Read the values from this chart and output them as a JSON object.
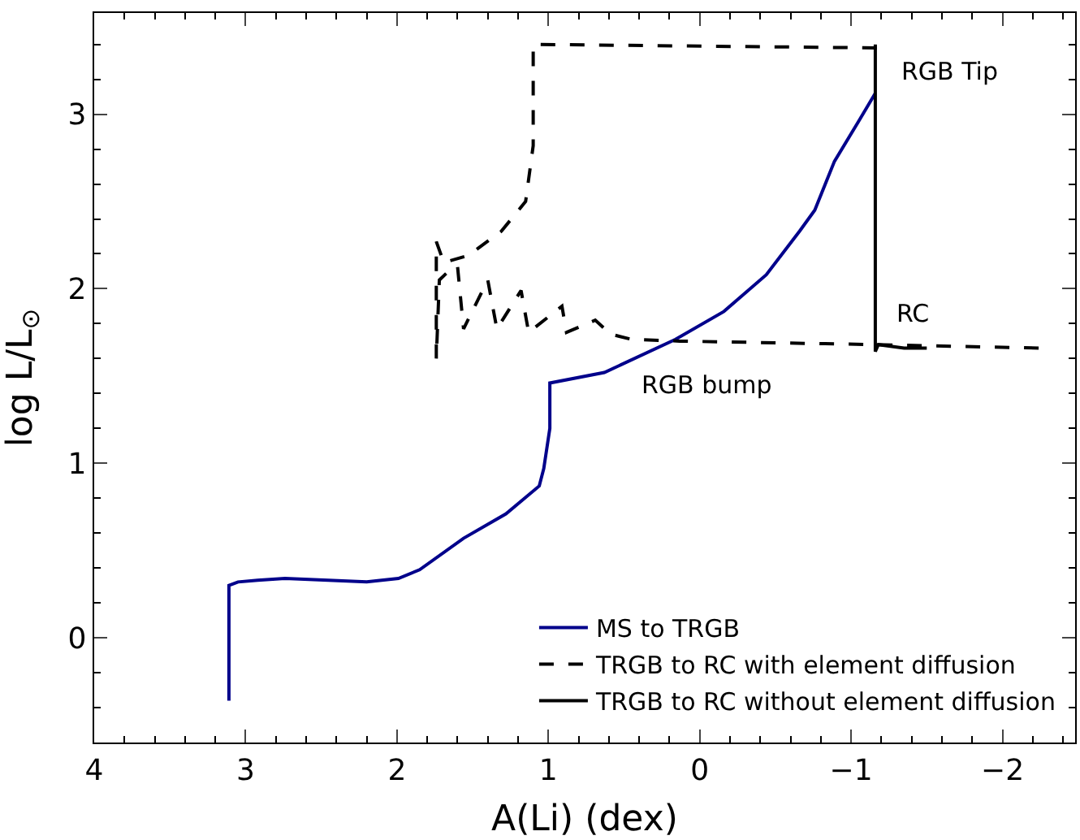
{
  "chart_data": {
    "type": "line",
    "xlabel": "A(Li) (dex)",
    "ylabel": "log L/L$_{⊙}$",
    "xlim": [
      4,
      -2.48
    ],
    "ylim": [
      -0.6,
      3.58
    ],
    "xticks": [
      4,
      3,
      2,
      1,
      0,
      {
        "value": -1,
        "label": "−1"
      },
      {
        "value": -2,
        "label": "−2"
      }
    ],
    "yticks": [
      0,
      1,
      2,
      3
    ],
    "legend": "bottom right",
    "marker": "none",
    "series": [
      {
        "name": "MS to TRGB",
        "color": "#00008b",
        "line_style": "solid",
        "x": [
          3.11,
          3.11,
          3.05,
          2.92,
          2.74,
          2.2,
          1.99,
          1.85,
          1.56,
          1.28,
          1.06,
          1.03,
          0.99,
          0.99,
          0.63,
          0.16,
          -0.16,
          -0.44,
          -0.66,
          -0.76,
          -0.89,
          -1.05,
          -1.16
        ],
        "values": [
          -0.36,
          0.3,
          0.32,
          0.33,
          0.34,
          0.32,
          0.34,
          0.39,
          0.57,
          0.71,
          0.87,
          0.97,
          1.2,
          1.46,
          1.52,
          1.71,
          1.87,
          2.08,
          2.33,
          2.45,
          2.73,
          2.96,
          3.12
        ]
      },
      {
        "name": "TRGB to RC with element diffusion",
        "color": "#000000",
        "line_style": "dashed",
        "x": [
          -1.17,
          1.1,
          1.1,
          1.15,
          1.31,
          1.53,
          1.69,
          1.74,
          1.74,
          1.72,
          1.66,
          1.6,
          1.56,
          1.4,
          1.34,
          1.18,
          1.13,
          0.91,
          0.88,
          0.69,
          0.59,
          0.45,
          0.13,
          -1.16,
          -2.24
        ],
        "values": [
          3.38,
          3.4,
          2.82,
          2.5,
          2.33,
          2.19,
          2.15,
          2.27,
          1.6,
          2.05,
          2.1,
          2.13,
          1.77,
          2.05,
          1.77,
          1.99,
          1.75,
          1.9,
          1.75,
          1.82,
          1.74,
          1.71,
          1.7,
          1.68,
          1.66
        ]
      },
      {
        "name": "TRGB to RC without element diffusion",
        "color": "#000000",
        "line_style": "solid",
        "x": [
          -1.16,
          -1.16,
          -1.18,
          -1.35,
          -1.5
        ],
        "values": [
          3.4,
          1.64,
          1.68,
          1.66,
          1.66
        ]
      }
    ],
    "annotations": [
      "RGB Tip",
      "RC",
      "RGB bump"
    ]
  }
}
